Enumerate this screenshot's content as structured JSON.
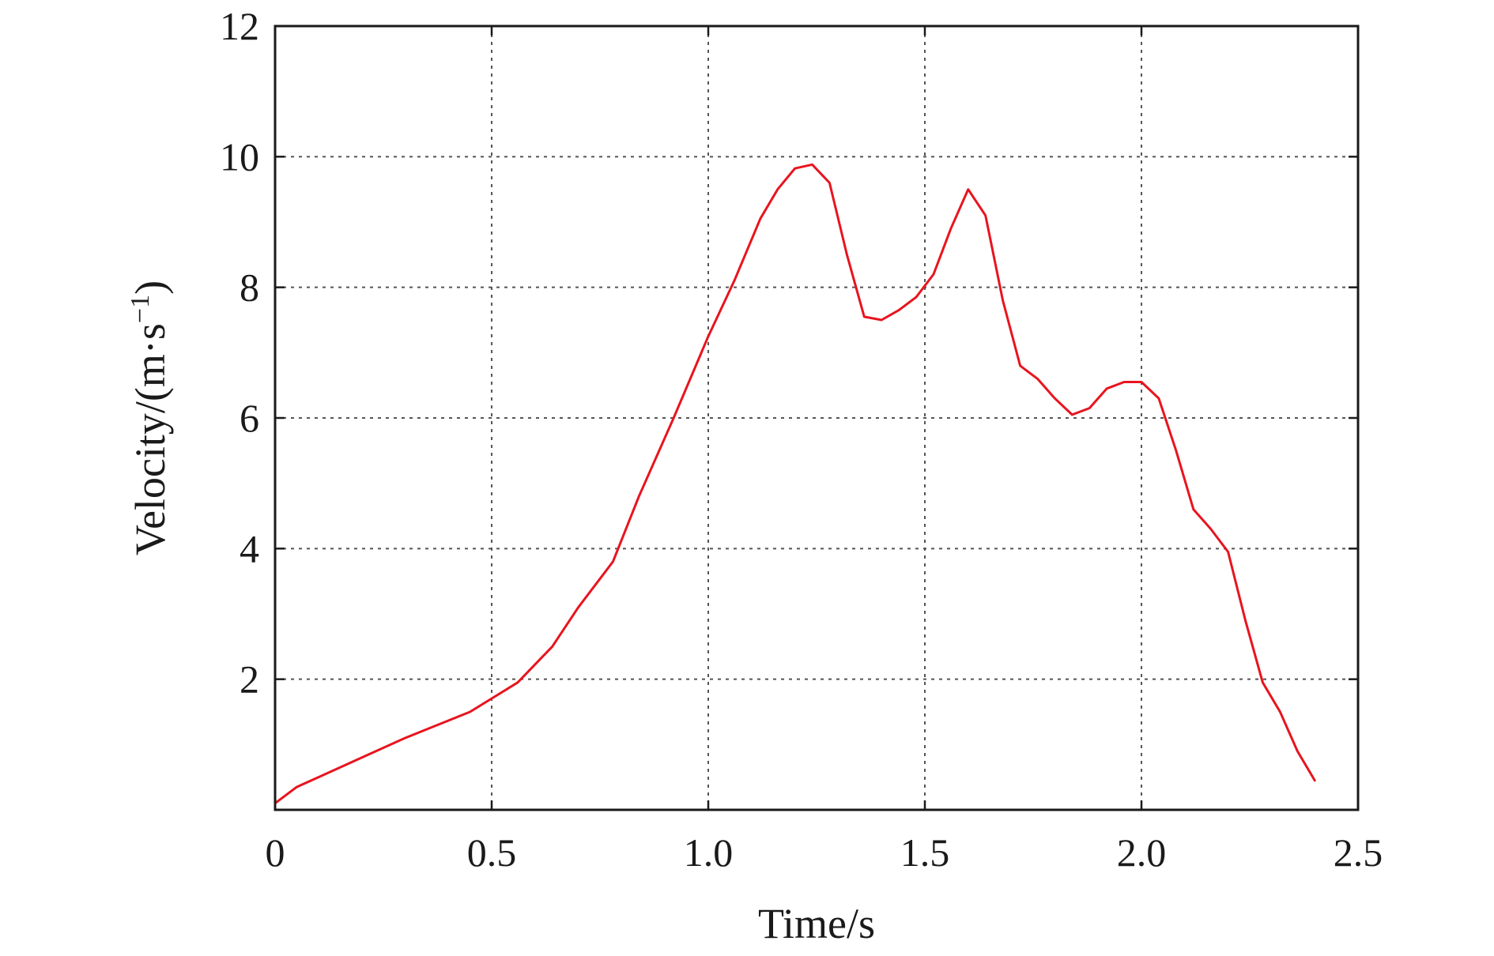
{
  "chart_data": {
    "type": "line",
    "title": "",
    "xlabel": "Time/s",
    "ylabel_main": "Velocity/(m·s",
    "ylabel_sup": "−1",
    "ylabel_close": ")",
    "xlim": [
      0,
      2.5
    ],
    "ylim": [
      0,
      12
    ],
    "xticks": [
      0,
      0.5,
      1.0,
      1.5,
      2.0,
      2.5
    ],
    "xtick_labels": [
      "0",
      "0.5",
      "1.0",
      "1.5",
      "2.0",
      "2.5"
    ],
    "yticks": [
      2,
      4,
      6,
      8,
      10,
      12
    ],
    "ytick_labels": [
      "2",
      "4",
      "6",
      "8",
      "10",
      "12"
    ],
    "grid": true,
    "series": [
      {
        "color": "#e8141e",
        "x": [
          0.0,
          0.05,
          0.1,
          0.2,
          0.3,
          0.45,
          0.56,
          0.64,
          0.7,
          0.78,
          0.84,
          0.92,
          1.0,
          1.06,
          1.12,
          1.16,
          1.2,
          1.24,
          1.28,
          1.32,
          1.36,
          1.4,
          1.44,
          1.48,
          1.52,
          1.56,
          1.6,
          1.64,
          1.68,
          1.72,
          1.76,
          1.8,
          1.84,
          1.88,
          1.92,
          1.96,
          2.0,
          2.04,
          2.08,
          2.12,
          2.16,
          2.2,
          2.24,
          2.28,
          2.32,
          2.36,
          2.4
        ],
        "y": [
          0.1,
          0.35,
          0.5,
          0.8,
          1.1,
          1.5,
          1.95,
          2.5,
          3.1,
          3.8,
          4.8,
          6.0,
          7.25,
          8.1,
          9.05,
          9.5,
          9.82,
          9.88,
          9.6,
          8.5,
          7.55,
          7.5,
          7.65,
          7.85,
          8.2,
          8.9,
          9.5,
          9.1,
          7.8,
          6.8,
          6.6,
          6.3,
          6.05,
          6.15,
          6.45,
          6.55,
          6.55,
          6.3,
          5.5,
          4.6,
          4.3,
          3.95,
          2.9,
          1.95,
          1.5,
          0.9,
          0.45
        ]
      }
    ]
  }
}
